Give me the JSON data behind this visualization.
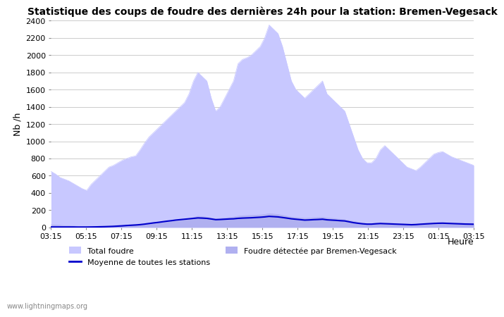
{
  "title": "Statistique des coups de foudre des dernières 24h pour la station: Bremen-Vegesack",
  "ylabel": "Nb /h",
  "xlabel_right": "Heure",
  "watermark": "www.lightningmaps.org",
  "ylim": [
    0,
    2400
  ],
  "yticks": [
    0,
    200,
    400,
    600,
    800,
    1000,
    1200,
    1400,
    1600,
    1800,
    2000,
    2200,
    2400
  ],
  "xtick_labels": [
    "03:15",
    "05:15",
    "07:15",
    "09:15",
    "11:15",
    "13:15",
    "15:15",
    "17:15",
    "19:15",
    "21:15",
    "23:15",
    "01:15",
    "03:15"
  ],
  "color_total": "#c8c8ff",
  "color_station": "#b0b0f0",
  "color_moyenne": "#0000cc",
  "legend_total": "Total foudre",
  "legend_moyenne": "Moyenne de toutes les stations",
  "legend_station": "Foudre détectée par Bremen-Vegesack",
  "total_foudre": [
    650,
    620,
    580,
    560,
    540,
    510,
    480,
    450,
    430,
    500,
    550,
    600,
    650,
    700,
    720,
    750,
    780,
    800,
    820,
    830,
    900,
    980,
    1050,
    1100,
    1150,
    1200,
    1250,
    1300,
    1350,
    1400,
    1450,
    1550,
    1700,
    1800,
    1750,
    1700,
    1500,
    1350,
    1400,
    1500,
    1600,
    1700,
    1900,
    1950,
    1970,
    2000,
    2050,
    2100,
    2200,
    2350,
    2300,
    2250,
    2100,
    1900,
    1700,
    1600,
    1550,
    1500,
    1550,
    1600,
    1650,
    1700,
    1550,
    1500,
    1450,
    1400,
    1350,
    1200,
    1050,
    900,
    800,
    750,
    750,
    800,
    900,
    950,
    900,
    850,
    800,
    750,
    700,
    680,
    660,
    700,
    750,
    800,
    850,
    870,
    880,
    850,
    820,
    800,
    780,
    760,
    740,
    720
  ],
  "station_foudre": [
    30,
    28,
    25,
    20,
    18,
    15,
    12,
    10,
    8,
    10,
    12,
    15,
    18,
    20,
    22,
    25,
    28,
    30,
    32,
    35,
    40,
    45,
    50,
    55,
    60,
    65,
    70,
    75,
    80,
    85,
    90,
    100,
    115,
    130,
    125,
    120,
    110,
    100,
    105,
    110,
    115,
    120,
    130,
    135,
    138,
    140,
    142,
    145,
    150,
    160,
    155,
    150,
    140,
    130,
    120,
    115,
    110,
    105,
    108,
    112,
    115,
    118,
    108,
    105,
    100,
    95,
    90,
    80,
    70,
    60,
    50,
    45,
    45,
    50,
    55,
    52,
    50,
    48,
    45,
    42,
    40,
    38,
    40,
    45,
    48,
    52,
    55,
    57,
    58,
    56,
    54,
    52,
    50,
    48,
    47,
    46
  ],
  "moyenne": [
    5,
    5,
    5,
    5,
    5,
    5,
    4,
    4,
    4,
    5,
    6,
    7,
    8,
    10,
    12,
    15,
    18,
    22,
    25,
    28,
    32,
    38,
    45,
    52,
    58,
    65,
    72,
    78,
    85,
    90,
    95,
    100,
    105,
    110,
    108,
    105,
    98,
    90,
    92,
    95,
    98,
    100,
    105,
    108,
    110,
    112,
    115,
    118,
    122,
    128,
    125,
    122,
    115,
    108,
    100,
    95,
    90,
    85,
    87,
    90,
    92,
    95,
    88,
    85,
    82,
    78,
    75,
    65,
    55,
    48,
    42,
    38,
    38,
    42,
    45,
    43,
    41,
    39,
    37,
    35,
    33,
    31,
    33,
    37,
    40,
    43,
    46,
    48,
    49,
    47,
    45,
    43,
    41,
    39,
    38,
    37
  ]
}
